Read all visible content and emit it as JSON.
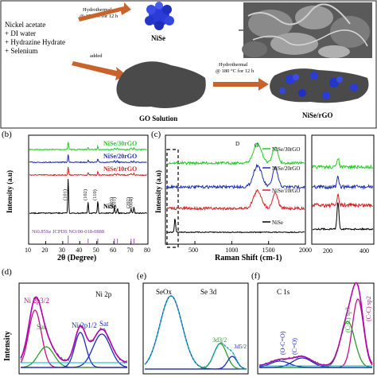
{
  "schematic": {
    "reagents": [
      "Nickel acetate",
      "+ DI water",
      "+ Hydrazine Hydrate",
      "+ Selenium"
    ],
    "arrow1_line1": "Hydrothermal",
    "arrow1_line2": "@ 180 °C for 12 h",
    "arrow2_label": "added",
    "arrow3_line1": "Hydrothermal",
    "arrow3_line2": "@ 180 °C for 12 h",
    "nise_label": "NiSe",
    "go_label": "GO Solution",
    "composite_label": "NiSe/rGO",
    "colors": {
      "nise": "#2a3bd6",
      "go_sheet": "#4a4a4a",
      "arrow": "#c8632b"
    }
  },
  "panel_b": {
    "letter": "(b)",
    "ylabel": "Intensity (a.u)",
    "xlabel": "2θ (Degree)",
    "ref_label": "Ni0.85Se JCPDS NO:00-018-0888",
    "chart_data": {
      "type": "line",
      "xlim": [
        10,
        80
      ],
      "x_ticks": [
        "10",
        "20",
        "30",
        "40",
        "50",
        "60",
        "70",
        "80"
      ],
      "series": [
        {
          "name": "NiSe/30rGO",
          "color": "#22cc22"
        },
        {
          "name": "NiSe/20rGO",
          "color": "#1a2db5"
        },
        {
          "name": "NiSe/10rGO",
          "color": "#d42020"
        },
        {
          "name": "NiSe",
          "color": "#000000"
        }
      ],
      "peak_positions": [
        33.2,
        44.9,
        50.6,
        60.3,
        62.1,
        70.1,
        71.8
      ],
      "peak_labels": [
        "(101)",
        "(102)",
        "(110)",
        "(103)",
        "(201)",
        "(202)",
        "(004)"
      ],
      "ref_lines": [
        33.2,
        44.9,
        50.6,
        60.3,
        62.1,
        70.1,
        71.8
      ]
    }
  },
  "panel_c": {
    "letter": "(c)",
    "ylabel": "Intensity (a.u)",
    "xlabel": "Raman Shift (cm-1)",
    "chart_data": {
      "type": "line",
      "xlim": [
        100,
        2000
      ],
      "x_ticks": [
        "500",
        "1000",
        "1500",
        "2000"
      ],
      "inset_ticks": [
        "200",
        "400"
      ],
      "band_labels": [
        "D",
        "G"
      ],
      "band_positions": [
        1350,
        1590
      ],
      "series": [
        {
          "name": "NiSe/30rGO",
          "color": "#22cc22"
        },
        {
          "name": "NiSe/20rGO",
          "color": "#1a2db5"
        },
        {
          "name": "NiSe/10rGO",
          "color": "#d42020"
        },
        {
          "name": "NiSe",
          "color": "#000000"
        }
      ]
    }
  },
  "panel_d": {
    "letter": "(d)",
    "title": "Ni 2p",
    "ylabel": "Intensity",
    "labels": [
      "Ni 2p3/2",
      "Sat",
      "Ni 2p1/2",
      "Sat"
    ]
  },
  "panel_e": {
    "letter": "(e)",
    "title": "Se 3d",
    "labels": [
      "SeOx",
      "3d3/2",
      "3d5/2"
    ]
  },
  "panel_f": {
    "letter": "(f)",
    "title": "C 1s",
    "labels": [
      "(C-C) sp2",
      "(C-C) sp3",
      "(C=O)",
      "(O-C=O)"
    ]
  }
}
